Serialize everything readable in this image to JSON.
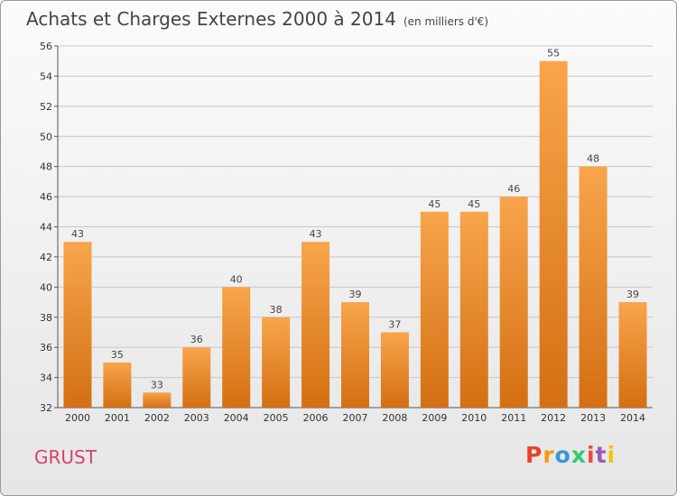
{
  "header": {
    "title": "Achats et Charges Externes 2000 à 2014",
    "unit": "(en milliers d'€)"
  },
  "footer": {
    "place": "GRUST",
    "brand": "Proxiti"
  },
  "colors": {
    "bar_light": "#f8a54c",
    "bar_dark": "#d46f12",
    "grid": "#c8c8c8",
    "place": "#d5446a",
    "logo": [
      "#e8412f",
      "#f39c12",
      "#3498db",
      "#2ecc71",
      "#e74c3c",
      "#9b59b6",
      "#f1c40f"
    ]
  },
  "chart_data": {
    "type": "bar",
    "categories": [
      "2000",
      "2001",
      "2002",
      "2003",
      "2004",
      "2005",
      "2006",
      "2007",
      "2008",
      "2009",
      "2010",
      "2011",
      "2012",
      "2013",
      "2014"
    ],
    "values": [
      43,
      35,
      33,
      36,
      40,
      38,
      43,
      39,
      37,
      45,
      45,
      46,
      55,
      48,
      39
    ],
    "title": "Achats et Charges Externes 2000 à 2014",
    "ylim": [
      32,
      56
    ],
    "yticks": [
      32,
      34,
      36,
      38,
      40,
      42,
      44,
      46,
      48,
      50,
      52,
      54,
      56
    ],
    "grid": "horizontal",
    "data_labels": true
  }
}
